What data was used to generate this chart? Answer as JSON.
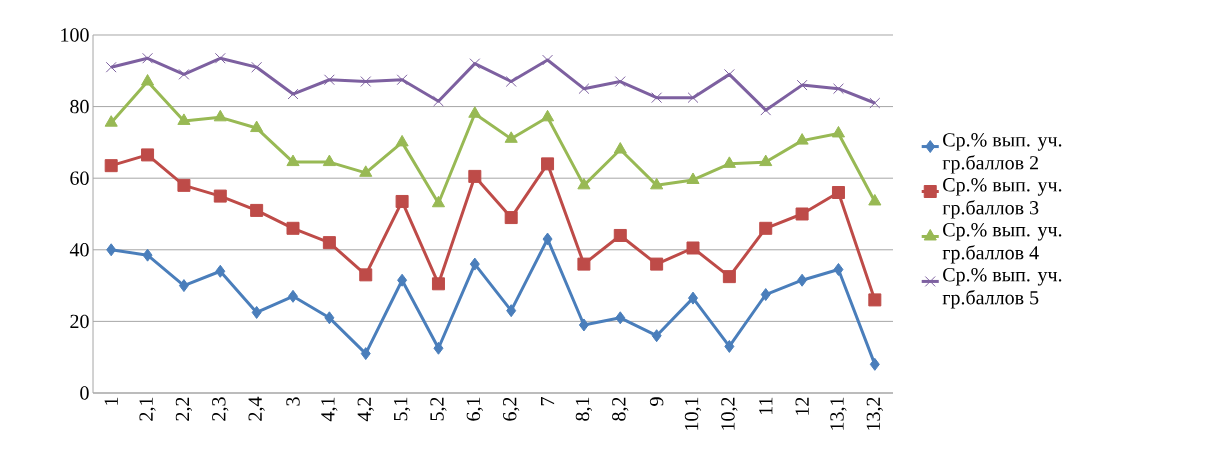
{
  "chart_data": {
    "type": "line",
    "categories": [
      "1",
      "2,1",
      "2,2",
      "2,3",
      "2,4",
      "3",
      "4,1",
      "4,2",
      "5,1",
      "5,2",
      "6,1",
      "6,2",
      "7",
      "8,1",
      "8,2",
      "9",
      "10,1",
      "10,2",
      "11",
      "12",
      "13,1",
      "13,2"
    ],
    "series": [
      {
        "name": "Ср.% вып. уч. гр.баллов 2",
        "color": "#4a7ebb",
        "marker": "diamond",
        "values": [
          40,
          38.5,
          30,
          34,
          22.5,
          27,
          21,
          11,
          31.5,
          12.5,
          36,
          23,
          43,
          19,
          21,
          16,
          26.5,
          13,
          27.5,
          31.5,
          34.5,
          8
        ]
      },
      {
        "name": "Ср.% вып. уч. гр.баллов 3",
        "color": "#be4b48",
        "marker": "square",
        "values": [
          63.5,
          66.5,
          58,
          55,
          51,
          46,
          42,
          33,
          53.5,
          30.5,
          60.5,
          49,
          64,
          36,
          44,
          36,
          40.5,
          32.5,
          46,
          50,
          56,
          26
        ]
      },
      {
        "name": "Ср.% вып. уч. гр.баллов 4",
        "color": "#98b954",
        "marker": "triangle",
        "values": [
          75.5,
          87,
          76,
          77,
          74,
          64.5,
          64.5,
          61.5,
          70,
          53,
          78,
          71,
          77,
          58,
          68,
          58,
          59.5,
          64,
          64.5,
          70.5,
          72.5,
          53.5
        ]
      },
      {
        "name": "Ср.% вып. уч. гр.баллов 5",
        "color": "#7d60a0",
        "marker": "cross",
        "values": [
          91,
          93.5,
          89,
          93.5,
          91,
          83.5,
          87.5,
          87,
          87.5,
          81.5,
          92,
          87,
          93,
          85,
          87,
          82.5,
          82.5,
          89,
          79,
          86,
          85,
          81
        ]
      }
    ],
    "ylim": [
      0,
      100
    ],
    "yticks": [
      0,
      20,
      40,
      60,
      80,
      100
    ],
    "grid": "y",
    "legend": "right",
    "line_style": "solid"
  }
}
